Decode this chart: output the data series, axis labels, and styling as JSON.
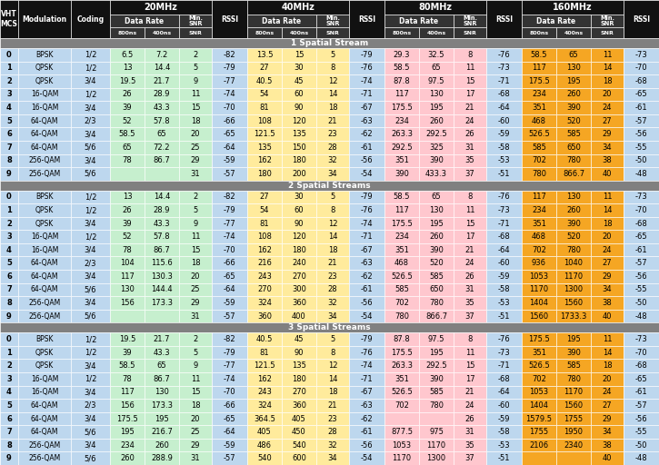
{
  "hdr_bg": "#111111",
  "hdr_fg": "#ffffff",
  "sub_hdr_bg": "#333333",
  "sect_bg": "#808080",
  "sect_fg": "#ffffff",
  "col_fixed_bg": "#bdd7ee",
  "band_bg": [
    "#c6efce",
    "#ffeb9c",
    "#ffc7ce",
    "#f5a623"
  ],
  "rssi_bg": "#bdd7ee",
  "streams": [
    {
      "label": "1 Spatial Stream",
      "rows": [
        [
          0,
          "BPSK",
          "1/2",
          "6.5",
          "7.2",
          2,
          -82,
          "13.5",
          15,
          5,
          -79,
          "29.3",
          "32.5",
          8,
          -76,
          "58.5",
          65,
          11,
          -73
        ],
        [
          1,
          "QPSK",
          "1/2",
          13,
          "14.4",
          5,
          -79,
          27,
          30,
          8,
          -76,
          "58.5",
          65,
          11,
          -73,
          117,
          130,
          14,
          -70
        ],
        [
          2,
          "QPSK",
          "3/4",
          "19.5",
          "21.7",
          9,
          -77,
          "40.5",
          45,
          12,
          -74,
          "87.8",
          "97.5",
          15,
          -71,
          "175.5",
          195,
          18,
          -68
        ],
        [
          3,
          "16-QAM",
          "1/2",
          26,
          "28.9",
          11,
          -74,
          54,
          60,
          14,
          -71,
          117,
          130,
          17,
          -68,
          234,
          260,
          20,
          -65
        ],
        [
          4,
          "16-QAM",
          "3/4",
          39,
          "43.3",
          15,
          -70,
          81,
          90,
          18,
          -67,
          "175.5",
          195,
          21,
          -64,
          351,
          390,
          24,
          -61
        ],
        [
          5,
          "64-QAM",
          "2/3",
          52,
          "57.8",
          18,
          -66,
          108,
          120,
          21,
          -63,
          234,
          260,
          24,
          -60,
          468,
          520,
          27,
          -57
        ],
        [
          6,
          "64-QAM",
          "3/4",
          "58.5",
          65,
          20,
          -65,
          "121.5",
          135,
          23,
          -62,
          "263.3",
          "292.5",
          26,
          -59,
          "526.5",
          585,
          29,
          -56
        ],
        [
          7,
          "64-QAM",
          "5/6",
          65,
          "72.2",
          25,
          -64,
          135,
          150,
          28,
          -61,
          "292.5",
          325,
          31,
          -58,
          585,
          650,
          34,
          -55
        ],
        [
          8,
          "256-QAM",
          "3/4",
          78,
          "86.7",
          29,
          -59,
          162,
          180,
          32,
          -56,
          351,
          390,
          35,
          -53,
          702,
          780,
          38,
          -50
        ],
        [
          9,
          "256-QAM",
          "5/6",
          "",
          "",
          31,
          -57,
          180,
          200,
          34,
          -54,
          390,
          "433.3",
          37,
          -51,
          780,
          "866.7",
          40,
          -48
        ]
      ]
    },
    {
      "label": "2 Spatial Streams",
      "rows": [
        [
          0,
          "BPSK",
          "1/2",
          13,
          "14.4",
          2,
          -82,
          27,
          30,
          5,
          -79,
          "58.5",
          65,
          8,
          -76,
          117,
          130,
          11,
          -73
        ],
        [
          1,
          "QPSK",
          "1/2",
          26,
          "28.9",
          5,
          -79,
          54,
          60,
          8,
          -76,
          117,
          130,
          11,
          -73,
          234,
          260,
          14,
          -70
        ],
        [
          2,
          "QPSK",
          "3/4",
          39,
          "43.3",
          9,
          -77,
          81,
          90,
          12,
          -74,
          "175.5",
          195,
          15,
          -71,
          351,
          390,
          18,
          -68
        ],
        [
          3,
          "16-QAM",
          "1/2",
          52,
          "57.8",
          11,
          -74,
          108,
          120,
          14,
          -71,
          234,
          260,
          17,
          -68,
          468,
          520,
          20,
          -65
        ],
        [
          4,
          "16-QAM",
          "3/4",
          78,
          "86.7",
          15,
          -70,
          162,
          180,
          18,
          -67,
          351,
          390,
          21,
          -64,
          702,
          780,
          24,
          -61
        ],
        [
          5,
          "64-QAM",
          "2/3",
          104,
          "115.6",
          18,
          -66,
          216,
          240,
          21,
          -63,
          468,
          520,
          24,
          -60,
          936,
          1040,
          27,
          -57
        ],
        [
          6,
          "64-QAM",
          "3/4",
          117,
          "130.3",
          20,
          -65,
          243,
          270,
          23,
          -62,
          "526.5",
          585,
          26,
          -59,
          1053,
          1170,
          29,
          -56
        ],
        [
          7,
          "64-QAM",
          "5/6",
          130,
          "144.4",
          25,
          -64,
          270,
          300,
          28,
          -61,
          585,
          650,
          31,
          -58,
          1170,
          1300,
          34,
          -55
        ],
        [
          8,
          "256-QAM",
          "3/4",
          156,
          "173.3",
          29,
          -59,
          324,
          360,
          32,
          -56,
          702,
          780,
          35,
          -53,
          1404,
          1560,
          38,
          -50
        ],
        [
          9,
          "256-QAM",
          "5/6",
          "",
          "",
          31,
          -57,
          360,
          400,
          34,
          -54,
          780,
          "866.7",
          37,
          -51,
          1560,
          "1733.3",
          40,
          -48
        ]
      ]
    },
    {
      "label": "3 Spatial Streams",
      "rows": [
        [
          0,
          "BPSK",
          "1/2",
          "19.5",
          "21.7",
          2,
          -82,
          "40.5",
          45,
          5,
          -79,
          "87.8",
          "97.5",
          8,
          -76,
          "175.5",
          195,
          11,
          -73
        ],
        [
          1,
          "QPSK",
          "1/2",
          39,
          "43.3",
          5,
          -79,
          81,
          90,
          8,
          -76,
          "175.5",
          195,
          11,
          -73,
          351,
          390,
          14,
          -70
        ],
        [
          2,
          "QPSK",
          "3/4",
          "58.5",
          65,
          9,
          -77,
          "121.5",
          135,
          12,
          -74,
          "263.3",
          "292.5",
          15,
          -71,
          "526.5",
          585,
          18,
          -68
        ],
        [
          3,
          "16-QAM",
          "1/2",
          78,
          "86.7",
          11,
          -74,
          162,
          180,
          14,
          -71,
          351,
          390,
          17,
          -68,
          702,
          780,
          20,
          -65
        ],
        [
          4,
          "16-QAM",
          "3/4",
          117,
          130,
          15,
          -70,
          243,
          270,
          18,
          -67,
          "526.5",
          585,
          21,
          -64,
          1053,
          1170,
          24,
          -61
        ],
        [
          5,
          "64-QAM",
          "2/3",
          156,
          "173.3",
          18,
          -66,
          324,
          360,
          21,
          -63,
          702,
          780,
          24,
          -60,
          1404,
          1560,
          27,
          -57
        ],
        [
          6,
          "64-QAM",
          "3/4",
          "175.5",
          195,
          20,
          -65,
          "364.5",
          405,
          23,
          -62,
          "",
          "",
          26,
          -59,
          "1579.5",
          1755,
          29,
          -56
        ],
        [
          7,
          "64-QAM",
          "5/6",
          195,
          "216.7",
          25,
          -64,
          405,
          450,
          28,
          -61,
          "877.5",
          975,
          31,
          -58,
          1755,
          1950,
          34,
          -55
        ],
        [
          8,
          "256-QAM",
          "3/4",
          234,
          260,
          29,
          -59,
          486,
          540,
          32,
          -56,
          1053,
          1170,
          35,
          -53,
          2106,
          2340,
          38,
          -50
        ],
        [
          9,
          "256-QAM",
          "5/6",
          260,
          "288.9",
          31,
          -57,
          540,
          600,
          34,
          -54,
          1170,
          1300,
          37,
          -51,
          "",
          "",
          40,
          -48
        ]
      ]
    }
  ]
}
